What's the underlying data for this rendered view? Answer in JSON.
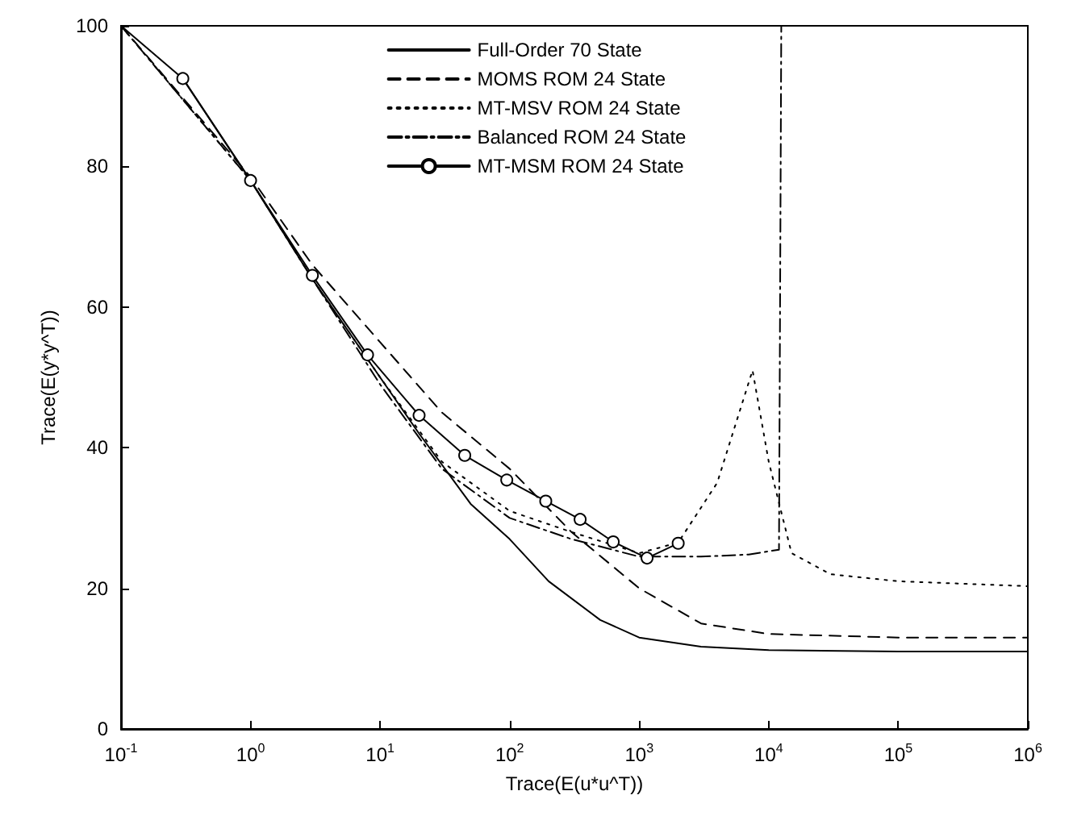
{
  "chart_data": {
    "type": "line",
    "xlabel": "Trace(E(u*u^T))",
    "ylabel": "Trace(E(y*y^T))",
    "log": "x",
    "grid": false,
    "legend": "top",
    "xlim": [
      0.1,
      1000000
    ],
    "ylim": [
      0,
      100
    ],
    "xticks": [
      {
        "value": 0.1,
        "label": "10$^{-1}$"
      },
      {
        "value": 1,
        "label": "10$^{0}$"
      },
      {
        "value": 10,
        "label": "10$^{1}$"
      },
      {
        "value": 100,
        "label": "10$^{2}$"
      },
      {
        "value": 1000,
        "label": "10$^{3}$"
      },
      {
        "value": 10000,
        "label": "10$^{4}$"
      },
      {
        "value": 100000,
        "label": "10$^{5}$"
      },
      {
        "value": 1000000,
        "label": "10$^{6}$"
      }
    ],
    "yticks": [
      0,
      20,
      40,
      60,
      80,
      100
    ],
    "series": [
      {
        "name": "Full-Order 70 State",
        "color": "#000000",
        "line_style": "solid",
        "marker": "none",
        "x": [
          0.1,
          0.3,
          1,
          3,
          10,
          20,
          50,
          100,
          200,
          500,
          1000,
          3000,
          10000,
          100000,
          1000000
        ],
        "values": [
          100,
          92.5,
          78,
          64,
          50,
          42,
          32,
          27,
          21,
          15.5,
          13,
          11.7,
          11.2,
          11,
          11
        ]
      },
      {
        "name": "MOMS ROM 24 State",
        "color": "#000000",
        "line_style": "dashed",
        "marker": "none",
        "x": [
          0.1,
          1,
          3,
          10,
          30,
          100,
          300,
          1000,
          3000,
          10000,
          100000,
          1000000
        ],
        "values": [
          100,
          78.5,
          66,
          55,
          45,
          37,
          28,
          20,
          15,
          13.5,
          13,
          13
        ]
      },
      {
        "name": "MT-MSV ROM 24 State",
        "color": "#000000",
        "line_style": "dotted",
        "marker": "none",
        "x": [
          0.1,
          1,
          3,
          10,
          30,
          100,
          300,
          1000,
          2000,
          4000,
          7500,
          10000,
          15000,
          30000,
          100000,
          1000000
        ],
        "values": [
          100,
          78,
          64,
          50,
          38,
          31,
          28,
          25,
          26.5,
          35,
          51,
          38,
          25,
          22,
          21,
          20.3
        ]
      },
      {
        "name": "Balanced ROM 24 State",
        "color": "#000000",
        "line_style": "dashdot",
        "marker": "none",
        "x": [
          0.1,
          1,
          3,
          10,
          30,
          100,
          300,
          1000,
          3000,
          7000,
          12000,
          12500
        ],
        "values": [
          100,
          78,
          64,
          49,
          37,
          30,
          27,
          24.5,
          24.5,
          24.8,
          25.5,
          100
        ]
      },
      {
        "name": "MT-MSM ROM 24 State",
        "color": "#000000",
        "line_style": "solid",
        "marker": "circle",
        "x": [
          0.3,
          1,
          3,
          8,
          20,
          45,
          95,
          190,
          350,
          630,
          1150,
          2000
        ],
        "values": [
          92.5,
          78,
          64.5,
          53.2,
          44.6,
          38.9,
          35.4,
          32.4,
          29.8,
          26.6,
          24.3,
          26.4
        ]
      }
    ]
  }
}
